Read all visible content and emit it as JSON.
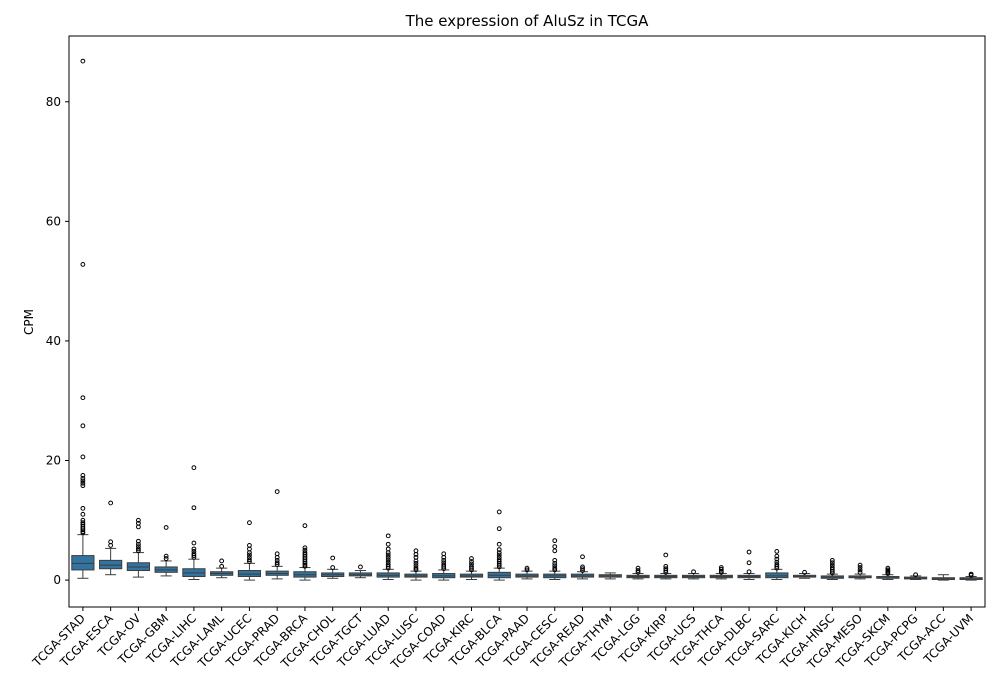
{
  "chart_data": {
    "type": "box",
    "title": "The expression of AluSz in TCGA",
    "xlabel": "",
    "ylabel": "CPM",
    "ylim": [
      -4.5,
      91
    ],
    "yticks": [
      0,
      20,
      40,
      60,
      80
    ],
    "grid": false,
    "box_color": "#3274a1",
    "categories": [
      "TCGA-STAD",
      "TCGA-ESCA",
      "TCGA-OV",
      "TCGA-GBM",
      "TCGA-LIHC",
      "TCGA-LAML",
      "TCGA-UCEC",
      "TCGA-PRAD",
      "TCGA-BRCA",
      "TCGA-CHOL",
      "TCGA-TGCT",
      "TCGA-LUAD",
      "TCGA-LUSC",
      "TCGA-COAD",
      "TCGA-KIRC",
      "TCGA-BLCA",
      "TCGA-PAAD",
      "TCGA-CESC",
      "TCGA-READ",
      "TCGA-THYM",
      "TCGA-LGG",
      "TCGA-KIRP",
      "TCGA-UCS",
      "TCGA-THCA",
      "TCGA-DLBC",
      "TCGA-SARC",
      "TCGA-KICH",
      "TCGA-HNSC",
      "TCGA-MESO",
      "TCGA-SKCM",
      "TCGA-PCPG",
      "TCGA-ACC",
      "TCGA-UVM"
    ],
    "boxes": [
      {
        "whislo": 0.3,
        "q1": 1.7,
        "med": 2.8,
        "q3": 4.1,
        "whishi": 7.6,
        "fliers": [
          7.9,
          8.1,
          8.4,
          8.7,
          9.0,
          9.3,
          9.6,
          10.0,
          11.0,
          12.0,
          15.8,
          16.2,
          16.6,
          17.0,
          17.5,
          20.6,
          25.8,
          30.5,
          52.8,
          86.8
        ]
      },
      {
        "whislo": 0.9,
        "q1": 1.9,
        "med": 2.5,
        "q3": 3.3,
        "whishi": 5.3,
        "fliers": [
          5.8,
          6.4,
          12.9
        ]
      },
      {
        "whislo": 0.5,
        "q1": 1.6,
        "med": 2.2,
        "q3": 2.9,
        "whishi": 4.6,
        "fliers": [
          4.9,
          5.2,
          5.6,
          6.0,
          6.5,
          8.9,
          9.5,
          10.0
        ]
      },
      {
        "whislo": 0.7,
        "q1": 1.3,
        "med": 1.7,
        "q3": 2.2,
        "whishi": 3.2,
        "fliers": [
          3.6,
          4.0,
          8.8
        ]
      },
      {
        "whislo": 0.1,
        "q1": 0.6,
        "med": 1.2,
        "q3": 1.9,
        "whishi": 3.5,
        "fliers": [
          3.8,
          4.1,
          4.4,
          4.8,
          5.2,
          6.2,
          12.1,
          18.8
        ]
      },
      {
        "whislo": 0.4,
        "q1": 0.8,
        "med": 1.1,
        "q3": 1.4,
        "whishi": 2.0,
        "fliers": [
          2.3,
          3.2
        ]
      },
      {
        "whislo": 0.0,
        "q1": 0.6,
        "med": 1.0,
        "q3": 1.6,
        "whishi": 2.8,
        "fliers": [
          3.1,
          3.4,
          3.8,
          4.2,
          4.6,
          5.2,
          5.8,
          9.6
        ]
      },
      {
        "whislo": 0.2,
        "q1": 0.8,
        "med": 1.1,
        "q3": 1.5,
        "whishi": 2.3,
        "fliers": [
          2.6,
          2.9,
          3.3,
          3.8,
          4.4,
          14.8
        ]
      },
      {
        "whislo": 0.0,
        "q1": 0.5,
        "med": 0.9,
        "q3": 1.4,
        "whishi": 2.1,
        "fliers": [
          2.3,
          2.5,
          2.8,
          3.1,
          3.4,
          3.7,
          4.0,
          4.3,
          4.6,
          5.0,
          5.4,
          9.1
        ]
      },
      {
        "whislo": 0.3,
        "q1": 0.6,
        "med": 0.9,
        "q3": 1.2,
        "whishi": 1.8,
        "fliers": [
          2.1,
          3.7
        ]
      },
      {
        "whislo": 0.4,
        "q1": 0.7,
        "med": 0.9,
        "q3": 1.2,
        "whishi": 1.6,
        "fliers": [
          2.2
        ]
      },
      {
        "whislo": 0.1,
        "q1": 0.5,
        "med": 0.8,
        "q3": 1.2,
        "whishi": 1.8,
        "fliers": [
          2.0,
          2.3,
          2.6,
          3.0,
          3.4,
          3.8,
          4.2,
          4.6,
          5.2,
          6.0,
          7.4
        ]
      },
      {
        "whislo": 0.0,
        "q1": 0.5,
        "med": 0.7,
        "q3": 1.0,
        "whishi": 1.5,
        "fliers": [
          1.7,
          2.0,
          2.4,
          2.8,
          3.2,
          3.8,
          4.3,
          4.9
        ]
      },
      {
        "whislo": 0.0,
        "q1": 0.4,
        "med": 0.7,
        "q3": 1.1,
        "whishi": 1.7,
        "fliers": [
          1.9,
          2.2,
          2.5,
          2.9,
          3.3,
          3.8,
          4.4
        ]
      },
      {
        "whislo": 0.1,
        "q1": 0.5,
        "med": 0.7,
        "q3": 1.0,
        "whishi": 1.5,
        "fliers": [
          1.7,
          2.0,
          2.3,
          2.7,
          3.1,
          3.6
        ]
      },
      {
        "whislo": 0.0,
        "q1": 0.4,
        "med": 0.8,
        "q3": 1.3,
        "whishi": 2.0,
        "fliers": [
          2.2,
          2.5,
          2.8,
          3.1,
          3.4,
          3.8,
          4.2,
          4.6,
          5.1,
          6.0,
          8.6,
          11.4
        ]
      },
      {
        "whislo": 0.2,
        "q1": 0.5,
        "med": 0.7,
        "q3": 1.0,
        "whishi": 1.5,
        "fliers": [
          1.7,
          2.0
        ]
      },
      {
        "whislo": 0.1,
        "q1": 0.4,
        "med": 0.7,
        "q3": 1.0,
        "whishi": 1.5,
        "fliers": [
          1.7,
          2.0,
          2.4,
          2.8,
          3.3,
          4.9,
          5.6,
          6.6
        ]
      },
      {
        "whislo": 0.2,
        "q1": 0.5,
        "med": 0.7,
        "q3": 1.0,
        "whishi": 1.4,
        "fliers": [
          1.6,
          1.9,
          2.2,
          3.9
        ]
      },
      {
        "whislo": 0.2,
        "q1": 0.5,
        "med": 0.7,
        "q3": 0.9,
        "whishi": 1.2,
        "fliers": []
      },
      {
        "whislo": 0.2,
        "q1": 0.4,
        "med": 0.6,
        "q3": 0.8,
        "whishi": 1.1,
        "fliers": [
          1.3,
          1.6,
          2.0
        ]
      },
      {
        "whislo": 0.2,
        "q1": 0.4,
        "med": 0.6,
        "q3": 0.8,
        "whishi": 1.1,
        "fliers": [
          1.3,
          1.6,
          1.9,
          2.3,
          4.2
        ]
      },
      {
        "whislo": 0.2,
        "q1": 0.4,
        "med": 0.6,
        "q3": 0.8,
        "whishi": 1.1,
        "fliers": [
          1.4
        ]
      },
      {
        "whislo": 0.2,
        "q1": 0.4,
        "med": 0.6,
        "q3": 0.8,
        "whishi": 1.1,
        "fliers": [
          1.3,
          1.5,
          1.8,
          2.1
        ]
      },
      {
        "whislo": 0.1,
        "q1": 0.4,
        "med": 0.6,
        "q3": 0.8,
        "whishi": 1.1,
        "fliers": [
          1.4,
          2.9,
          4.7
        ]
      },
      {
        "whislo": 0.1,
        "q1": 0.4,
        "med": 0.7,
        "q3": 1.2,
        "whishi": 1.8,
        "fliers": [
          2.0,
          2.3,
          2.6,
          3.0,
          3.5,
          4.0,
          4.8
        ]
      },
      {
        "whislo": 0.3,
        "q1": 0.5,
        "med": 0.6,
        "q3": 0.8,
        "whishi": 1.1,
        "fliers": [
          1.3
        ]
      },
      {
        "whislo": 0.1,
        "q1": 0.3,
        "med": 0.5,
        "q3": 0.7,
        "whishi": 1.0,
        "fliers": [
          1.2,
          1.5,
          1.8,
          2.1,
          2.5,
          2.9,
          3.3
        ]
      },
      {
        "whislo": 0.2,
        "q1": 0.4,
        "med": 0.5,
        "q3": 0.7,
        "whishi": 1.0,
        "fliers": [
          1.3,
          1.7,
          2.1,
          2.5
        ]
      },
      {
        "whislo": 0.1,
        "q1": 0.3,
        "med": 0.4,
        "q3": 0.6,
        "whishi": 0.9,
        "fliers": [
          1.1,
          1.3,
          1.5,
          1.7,
          2.0
        ]
      },
      {
        "whislo": 0.1,
        "q1": 0.2,
        "med": 0.3,
        "q3": 0.5,
        "whishi": 0.7,
        "fliers": [
          0.9
        ]
      },
      {
        "whislo": 0.0,
        "q1": 0.1,
        "med": 0.2,
        "q3": 0.4,
        "whishi": 0.9,
        "fliers": []
      },
      {
        "whislo": 0.0,
        "q1": 0.1,
        "med": 0.2,
        "q3": 0.4,
        "whishi": 0.6,
        "fliers": [
          0.8,
          1.0
        ]
      }
    ]
  }
}
